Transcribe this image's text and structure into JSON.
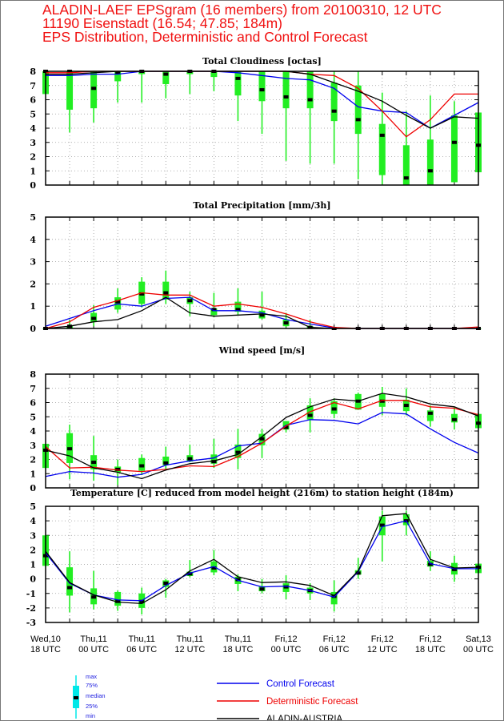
{
  "header": {
    "line1": "ALADIN-LAEF EPSgram (16 members) from 20100310, 12 UTC",
    "line2": "11190 Eisenstadt (16.54; 47.85; 184m)",
    "line3": "EPS Distribution, Deterministic and Control Forecast"
  },
  "colors": {
    "box": "#22ee22",
    "median": "#000000",
    "control": "#0000ee",
    "deterministic": "#ee0000",
    "aladin": "#000000",
    "legend_box": "#00e8e8"
  },
  "legend": {
    "box_labels": [
      "max",
      "75%",
      "median",
      "25%",
      "min"
    ],
    "lines": [
      {
        "key": "control",
        "label": "Control Forecast"
      },
      {
        "key": "deterministic",
        "label": "Deterministic Forecast"
      },
      {
        "key": "aladin",
        "label": "ALADIN-AUSTRIA"
      }
    ]
  },
  "chart_data": {
    "type": "boxplot+line",
    "x_tick_labels": [
      [
        "Wed,10",
        "18 UTC"
      ],
      [
        "Thu,11",
        "00 UTC"
      ],
      [
        "Thu,11",
        "06 UTC"
      ],
      [
        "Thu,11",
        "12 UTC"
      ],
      [
        "Thu,11",
        "18 UTC"
      ],
      [
        "Fri,12",
        "00 UTC"
      ],
      [
        "Fri,12",
        "06 UTC"
      ],
      [
        "Fri,12",
        "12 UTC"
      ],
      [
        "Fri,12",
        "18 UTC"
      ],
      [
        "Sat,13",
        "00 UTC"
      ]
    ],
    "n_steps": 19,
    "step_hours": 3,
    "panels": [
      {
        "title": "Total Cloudiness [octas]",
        "ylim": [
          0,
          8
        ],
        "yticks": [
          0,
          1,
          2,
          3,
          4,
          5,
          6,
          7,
          8
        ],
        "min": [
          6.4,
          3.7,
          4.4,
          5.8,
          5.8,
          6.1,
          6.4,
          6.6,
          4.5,
          3.6,
          1.7,
          1.5,
          1.5,
          0.4,
          0,
          0,
          0,
          0.2,
          0.9
        ],
        "q25": [
          6.4,
          5.3,
          5.4,
          7.3,
          7.8,
          7.1,
          7.8,
          7.6,
          6.3,
          5.9,
          5.4,
          5.4,
          4.5,
          3.6,
          0.7,
          0,
          0,
          0.2,
          0.9
        ],
        "median": [
          8,
          8,
          6.8,
          7.9,
          8,
          7.8,
          8,
          8,
          7.5,
          6.7,
          6.2,
          6.0,
          5.2,
          4.6,
          3.5,
          0.5,
          1.0,
          3.0,
          2.8
        ],
        "q75": [
          8,
          8,
          8,
          8,
          8,
          8,
          8,
          8,
          8,
          8,
          8,
          8,
          7.2,
          7.0,
          4.3,
          2.8,
          3.2,
          4.9,
          5.1
        ],
        "max": [
          8,
          8,
          8,
          8,
          8,
          8,
          8,
          8,
          8,
          8,
          8,
          8,
          8,
          8,
          6.5,
          5.2,
          6.3,
          5.9,
          5.1
        ],
        "control": [
          7.7,
          7.7,
          7.8,
          7.8,
          8,
          8,
          8,
          8,
          7.9,
          7.7,
          7.5,
          7.4,
          6.8,
          5.5,
          5.2,
          5.1,
          4.0,
          4.9,
          5.8
        ],
        "deterministic": [
          7.9,
          7.9,
          8,
          8,
          8,
          8,
          8,
          8,
          8,
          8,
          8,
          7.8,
          7.7,
          6.8,
          5.2,
          3.4,
          4.6,
          6.4,
          6.4
        ],
        "aladin": [
          7.8,
          7.8,
          7.9,
          8,
          8,
          8,
          8,
          8,
          8,
          8,
          8,
          7.8,
          7.2,
          6.6,
          5.9,
          4.9,
          4.0,
          4.8,
          4.7
        ]
      },
      {
        "title": "Total Precipitation [mm/3h]",
        "ylim": [
          0,
          5
        ],
        "yticks": [
          0,
          1,
          2,
          3,
          4,
          5
        ],
        "min": [
          0,
          0,
          0.1,
          0.7,
          0.95,
          1.1,
          0.55,
          0.5,
          0.6,
          0.4,
          0.05,
          0,
          0,
          0,
          0,
          0,
          0,
          0,
          0
        ],
        "q25": [
          0,
          0,
          0.3,
          0.85,
          1.1,
          1.3,
          1.1,
          0.6,
          0.75,
          0.45,
          0.1,
          0,
          0,
          0,
          0,
          0,
          0,
          0,
          0
        ],
        "median": [
          0,
          0.1,
          0.45,
          1.2,
          1.55,
          1.6,
          1.25,
          0.85,
          0.85,
          0.6,
          0.25,
          0.05,
          0,
          0,
          0,
          0,
          0,
          0,
          0
        ],
        "q75": [
          0,
          0.1,
          0.7,
          1.4,
          2.1,
          2.1,
          1.4,
          0.9,
          1.2,
          0.8,
          0.4,
          0.1,
          0,
          0,
          0,
          0,
          0,
          0,
          0
        ],
        "max": [
          0,
          0.4,
          1.05,
          1.8,
          2.3,
          2.6,
          1.65,
          1.6,
          1.8,
          1.65,
          0.7,
          0.4,
          0,
          0,
          0,
          0,
          0,
          0,
          0
        ],
        "control": [
          0.1,
          0.45,
          0.8,
          1.1,
          1.0,
          1.35,
          1.4,
          0.8,
          0.8,
          0.7,
          0.4,
          0.2,
          0.02,
          0,
          0,
          0,
          0,
          0,
          0
        ],
        "deterministic": [
          0,
          0.3,
          0.95,
          1.25,
          1.6,
          1.5,
          1.5,
          1.0,
          1.1,
          0.95,
          0.65,
          0.3,
          0.05,
          0,
          0,
          0,
          0,
          0,
          0.07
        ],
        "aladin": [
          0,
          0.1,
          0.3,
          0.4,
          0.8,
          1.4,
          0.7,
          0.55,
          0.6,
          0.65,
          0.55,
          0.05,
          0,
          0,
          0,
          0,
          0,
          0,
          0
        ]
      },
      {
        "title": "Wind speed [m/s]",
        "ylim": [
          0,
          8
        ],
        "yticks": [
          0,
          1,
          2,
          3,
          4,
          5,
          6,
          7,
          8
        ],
        "min": [
          1.4,
          0.6,
          0.5,
          0.2,
          0.9,
          1.3,
          1.8,
          1.4,
          1.3,
          2.1,
          3.9,
          3.9,
          4.9,
          5.5,
          5.1,
          5.1,
          4.3,
          4.1,
          4.2
        ],
        "q25": [
          1.4,
          1.75,
          1.3,
          1.1,
          1.2,
          1.6,
          1.85,
          1.7,
          2.1,
          3.0,
          4.1,
          4.8,
          5.2,
          5.5,
          5.7,
          5.4,
          4.7,
          4.6,
          4.2
        ],
        "median": [
          2.65,
          2.75,
          1.8,
          1.3,
          1.55,
          1.75,
          2.05,
          1.85,
          2.5,
          3.45,
          4.25,
          5.1,
          5.55,
          6.1,
          6.1,
          5.8,
          5.25,
          4.8,
          4.55
        ],
        "q75": [
          3.1,
          3.85,
          2.3,
          1.5,
          2.1,
          2.2,
          2.3,
          2.35,
          3.05,
          3.8,
          4.7,
          5.8,
          6.1,
          6.6,
          6.6,
          6.2,
          5.45,
          5.2,
          5.2
        ],
        "max": [
          3.1,
          4.45,
          3.65,
          2.0,
          2.35,
          2.9,
          3.05,
          3.45,
          4.15,
          4.15,
          4.7,
          6.3,
          6.3,
          6.7,
          7.1,
          7.0,
          5.8,
          5.7,
          5.3
        ],
        "control": [
          0.8,
          1.15,
          1.05,
          0.75,
          0.95,
          1.6,
          1.9,
          2.1,
          2.95,
          3.15,
          4.4,
          4.8,
          4.75,
          4.5,
          5.3,
          5.2,
          4.15,
          3.2,
          2.45
        ],
        "deterministic": [
          2.9,
          1.4,
          1.45,
          1.25,
          1.15,
          1.3,
          1.55,
          1.5,
          2.2,
          3.15,
          4.35,
          5.35,
          6.0,
          5.55,
          6.15,
          6.15,
          5.7,
          5.6,
          5.15
        ],
        "aladin": [
          2.65,
          2.25,
          1.4,
          1.1,
          0.65,
          1.25,
          1.7,
          1.9,
          2.35,
          3.6,
          4.95,
          5.7,
          6.25,
          6.1,
          6.65,
          6.4,
          5.9,
          5.7,
          5.05
        ]
      },
      {
        "title": "Temperature [C] reduced from model height (216m) to station height (184m)",
        "ylim": [
          -3,
          5
        ],
        "yticks": [
          -3,
          -2,
          -1,
          0,
          1,
          2,
          3,
          4,
          5
        ],
        "min": [
          0.9,
          -2.3,
          -2.1,
          -2.2,
          -2.45,
          -1.3,
          0.1,
          0.25,
          -0.85,
          -1.0,
          -1.4,
          -1.45,
          -2.25,
          0.0,
          1.2,
          3.0,
          0.55,
          -0.2,
          0.4
        ],
        "q25": [
          0.9,
          -1.15,
          -1.75,
          -1.85,
          -2.0,
          -0.55,
          0.2,
          0.45,
          -0.35,
          -0.85,
          -0.9,
          -1.0,
          -1.75,
          0.3,
          3.0,
          3.7,
          0.85,
          0.3,
          0.4
        ],
        "median": [
          1.6,
          -0.6,
          -1.25,
          -1.55,
          -1.55,
          -0.3,
          0.35,
          0.75,
          -0.05,
          -0.7,
          -0.55,
          -0.8,
          -1.2,
          0.4,
          3.7,
          4.0,
          1.0,
          0.65,
          0.8
        ],
        "q75": [
          3.0,
          0.8,
          -0.65,
          -0.9,
          -1.0,
          -0.1,
          0.5,
          1.2,
          0.15,
          -0.5,
          -0.3,
          -0.6,
          -0.9,
          0.6,
          4.3,
          4.45,
          1.25,
          1.1,
          1.05
        ],
        "max": [
          3.0,
          1.9,
          0.55,
          -0.8,
          -0.6,
          0.0,
          1.3,
          2.0,
          0.3,
          0.0,
          0.25,
          -0.3,
          -0.1,
          1.45,
          4.7,
          4.7,
          1.9,
          1.6,
          1.05
        ],
        "control": [
          1.8,
          -0.3,
          -1.1,
          -1.45,
          -1.5,
          -0.45,
          0.4,
          0.85,
          -0.1,
          -0.55,
          -0.5,
          -0.8,
          -1.25,
          0.5,
          3.6,
          4.0,
          1.05,
          0.7,
          0.7
        ],
        "aladin": [
          1.9,
          -0.25,
          -1.1,
          -1.6,
          -1.7,
          -0.75,
          0.55,
          1.35,
          0.15,
          -0.25,
          -0.2,
          -0.45,
          -1.15,
          0.55,
          4.35,
          4.5,
          1.35,
          0.75,
          0.8
        ]
      }
    ]
  }
}
